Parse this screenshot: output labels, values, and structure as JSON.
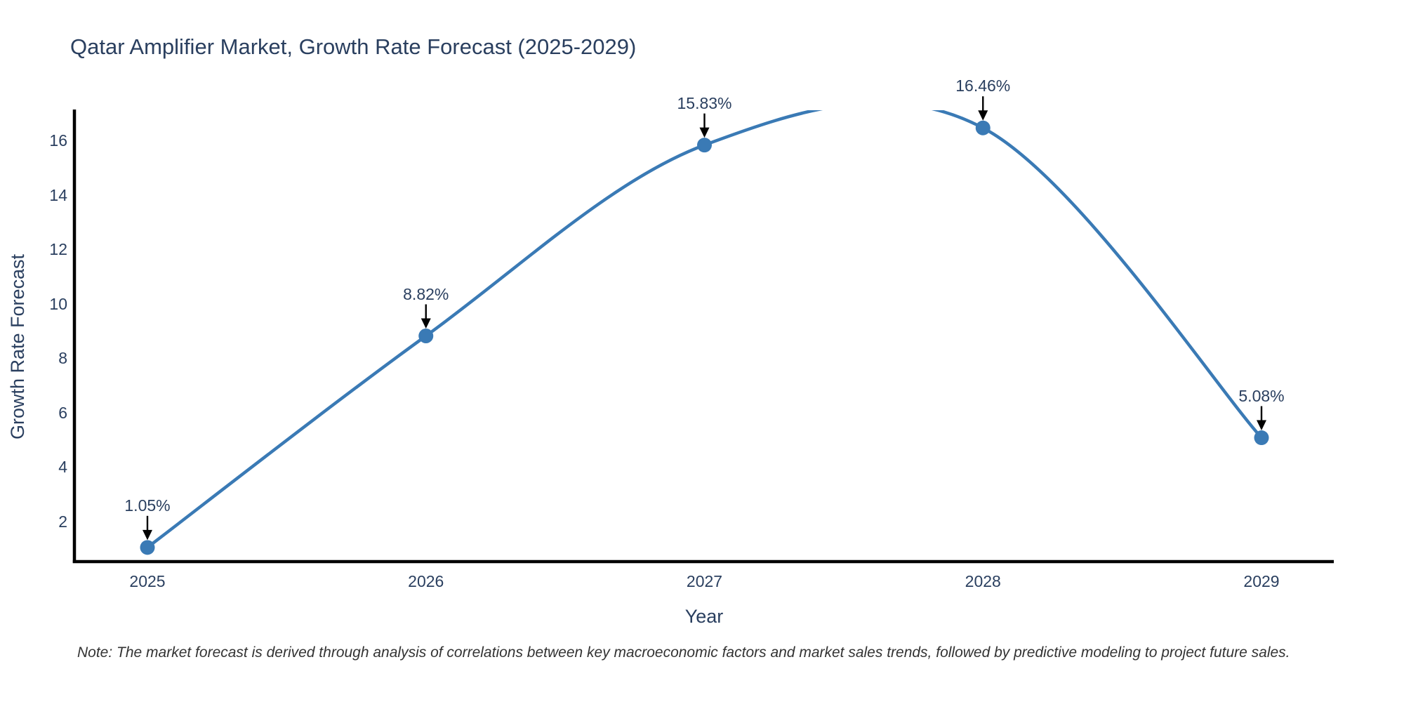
{
  "title": "Qatar Amplifier Market, Growth Rate Forecast (2025-2029)",
  "note": "Note: The market forecast is derived through analysis of correlations between key macroeconomic factors and market sales trends, followed by predictive modeling to project future sales.",
  "chart_data": {
    "type": "line",
    "line_shape": "spline",
    "title": "Qatar Amplifier Market, Growth Rate Forecast (2025-2029)",
    "x": [
      2025,
      2026,
      2027,
      2028,
      2029
    ],
    "y": [
      1.05,
      8.82,
      15.83,
      16.46,
      5.08
    ],
    "point_labels": [
      "1.05%",
      "8.82%",
      "15.83%",
      "16.46%",
      "5.08%"
    ],
    "xlabel": "Year",
    "ylabel": "Growth Rate Forecast",
    "yticks": [
      2,
      4,
      6,
      8,
      10,
      12,
      14,
      16
    ],
    "xticks": [
      "2025",
      "2026",
      "2027",
      "2028",
      "2029"
    ],
    "ylim": [
      0.53,
      17.11
    ],
    "grid": false,
    "legend": "none",
    "annotations_have_arrows": true,
    "colors": {
      "line": "#3a7ab5",
      "marker": "#3a7ab5",
      "axis": "#000000",
      "arrow": "#000000",
      "chart_text": "#2a3f5f",
      "note_text": "#333333",
      "background": "#ffffff"
    }
  }
}
